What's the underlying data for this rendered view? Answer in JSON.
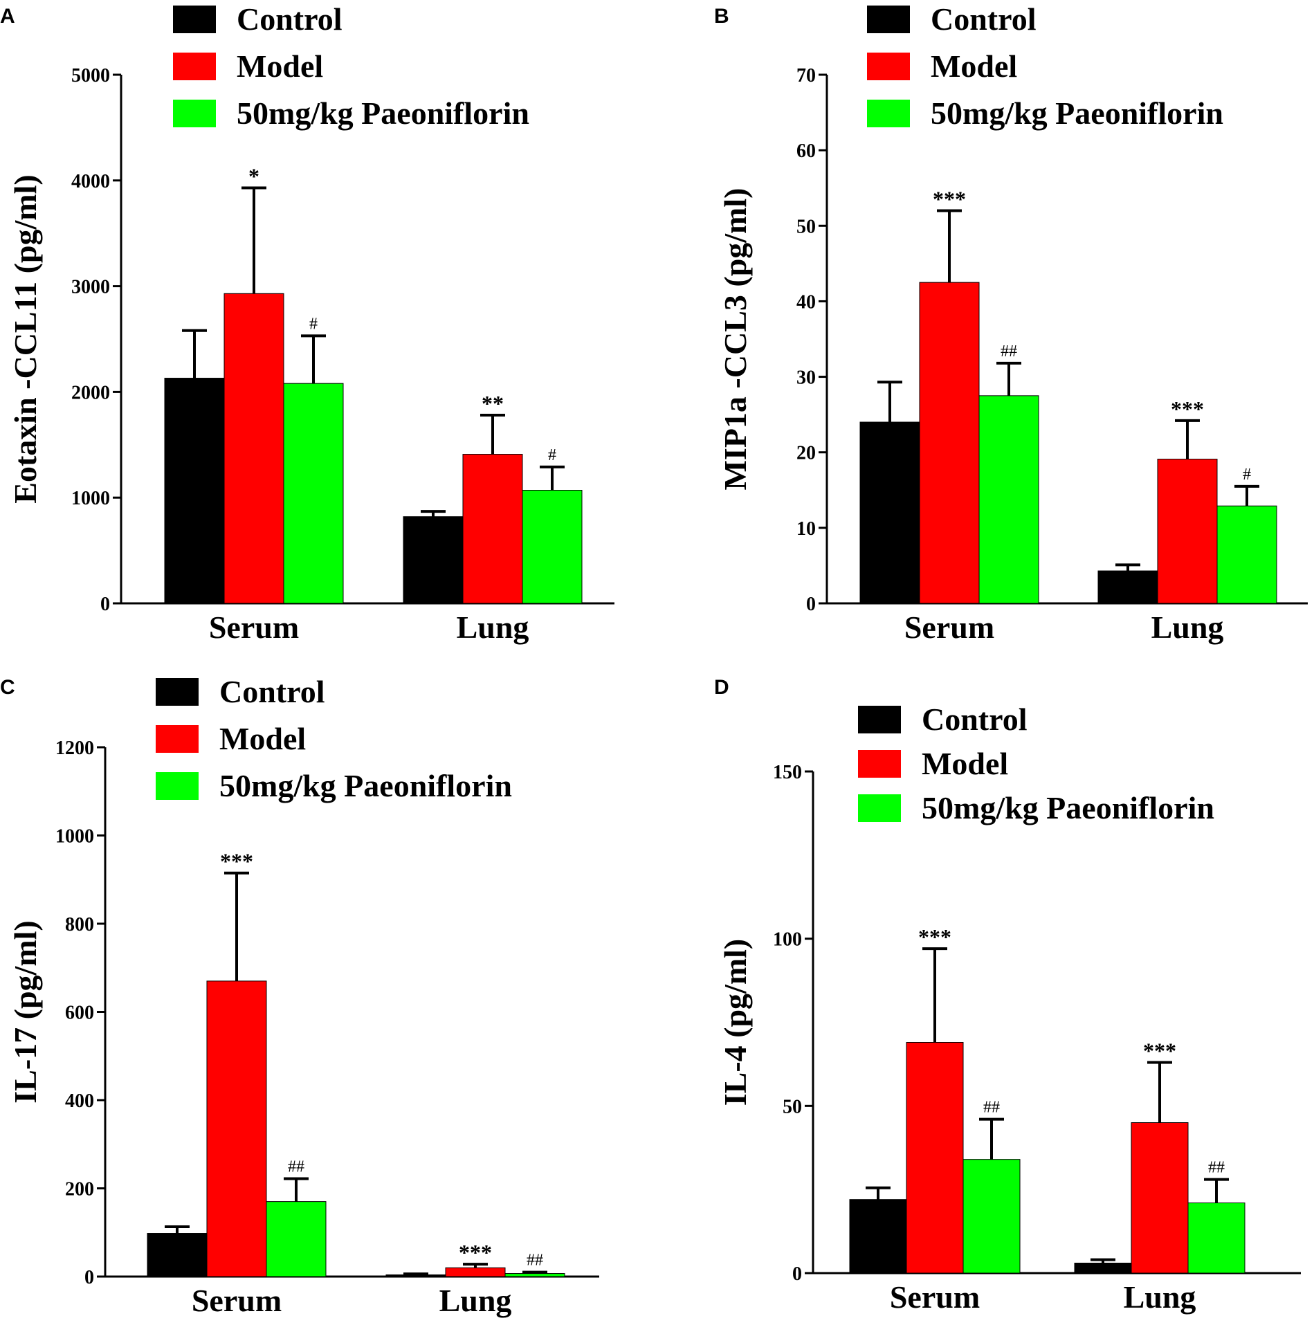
{
  "chart_data": [
    {
      "type": "bar",
      "panel": "A",
      "ylabel": "Eotaxin -CCL11 (pg/ml)",
      "ylim": [
        0,
        5000
      ],
      "yticks": [
        0,
        1000,
        2000,
        3000,
        4000,
        5000
      ],
      "categories": [
        "Serum",
        "Lung"
      ],
      "legend": [
        "Control",
        "Model",
        "50mg/kg Paeoniflorin"
      ],
      "series": [
        {
          "name": "Control",
          "color": "#000000",
          "values": [
            2130,
            820
          ],
          "errors": [
            450,
            50
          ],
          "sig": [
            "",
            ""
          ]
        },
        {
          "name": "Model",
          "color": "#ff0000",
          "values": [
            2930,
            1410
          ],
          "errors": [
            1000,
            370
          ],
          "sig": [
            "*",
            "**"
          ]
        },
        {
          "name": "50mg/kg Paeoniflorin",
          "color": "#00ff00",
          "values": [
            2080,
            1070
          ],
          "errors": [
            450,
            220
          ],
          "sig": [
            "#",
            "#"
          ]
        }
      ]
    },
    {
      "type": "bar",
      "panel": "B",
      "ylabel": "MIP1a -CCL3 (pg/ml)",
      "ylim": [
        0,
        70
      ],
      "yticks": [
        0,
        10,
        20,
        30,
        40,
        50,
        60,
        70
      ],
      "categories": [
        "Serum",
        "Lung"
      ],
      "legend": [
        "Control",
        "Model",
        "50mg/kg Paeoniflorin"
      ],
      "series": [
        {
          "name": "Control",
          "color": "#000000",
          "values": [
            24,
            4.3
          ],
          "errors": [
            5.3,
            0.8
          ],
          "sig": [
            "",
            ""
          ]
        },
        {
          "name": "Model",
          "color": "#ff0000",
          "values": [
            42.5,
            19.1
          ],
          "errors": [
            9.5,
            5.1
          ],
          "sig": [
            "***",
            "***"
          ]
        },
        {
          "name": "50mg/kg Paeoniflorin",
          "color": "#00ff00",
          "values": [
            27.5,
            12.9
          ],
          "errors": [
            4.3,
            2.6
          ],
          "sig": [
            "##",
            "#"
          ]
        }
      ]
    },
    {
      "type": "bar",
      "panel": "C",
      "ylabel": "IL-17 (pg/ml)",
      "ylim": [
        0,
        1200
      ],
      "yticks": [
        0,
        200,
        400,
        600,
        800,
        1000,
        1200
      ],
      "categories": [
        "Serum",
        "Lung"
      ],
      "legend": [
        "Control",
        "Model",
        "50mg/kg Paeoniflorin"
      ],
      "series": [
        {
          "name": "Control",
          "color": "#000000",
          "values": [
            98,
            4
          ],
          "errors": [
            15,
            2
          ],
          "sig": [
            "",
            ""
          ]
        },
        {
          "name": "Model",
          "color": "#ff0000",
          "values": [
            670,
            20
          ],
          "errors": [
            245,
            8
          ],
          "sig": [
            "***",
            "***"
          ]
        },
        {
          "name": "50mg/kg Paeoniflorin",
          "color": "#00ff00",
          "values": [
            170,
            7
          ],
          "errors": [
            52,
            3
          ],
          "sig": [
            "##",
            "##"
          ]
        }
      ]
    },
    {
      "type": "bar",
      "panel": "D",
      "ylabel": "IL-4 (pg/ml)",
      "ylim": [
        0,
        150
      ],
      "yticks": [
        0,
        50,
        100,
        150
      ],
      "categories": [
        "Serum",
        "Lung"
      ],
      "legend": [
        "Control",
        "Model",
        "50mg/kg Paeoniflorin"
      ],
      "series": [
        {
          "name": "Control",
          "color": "#000000",
          "values": [
            22,
            3
          ],
          "errors": [
            3.5,
            1
          ],
          "sig": [
            "",
            ""
          ]
        },
        {
          "name": "Model",
          "color": "#ff0000",
          "values": [
            69,
            45
          ],
          "errors": [
            28,
            18
          ],
          "sig": [
            "***",
            "***"
          ]
        },
        {
          "name": "50mg/kg Paeoniflorin",
          "color": "#00ff00",
          "values": [
            34,
            21
          ],
          "errors": [
            12,
            7
          ],
          "sig": [
            "##",
            "##"
          ]
        }
      ]
    }
  ]
}
